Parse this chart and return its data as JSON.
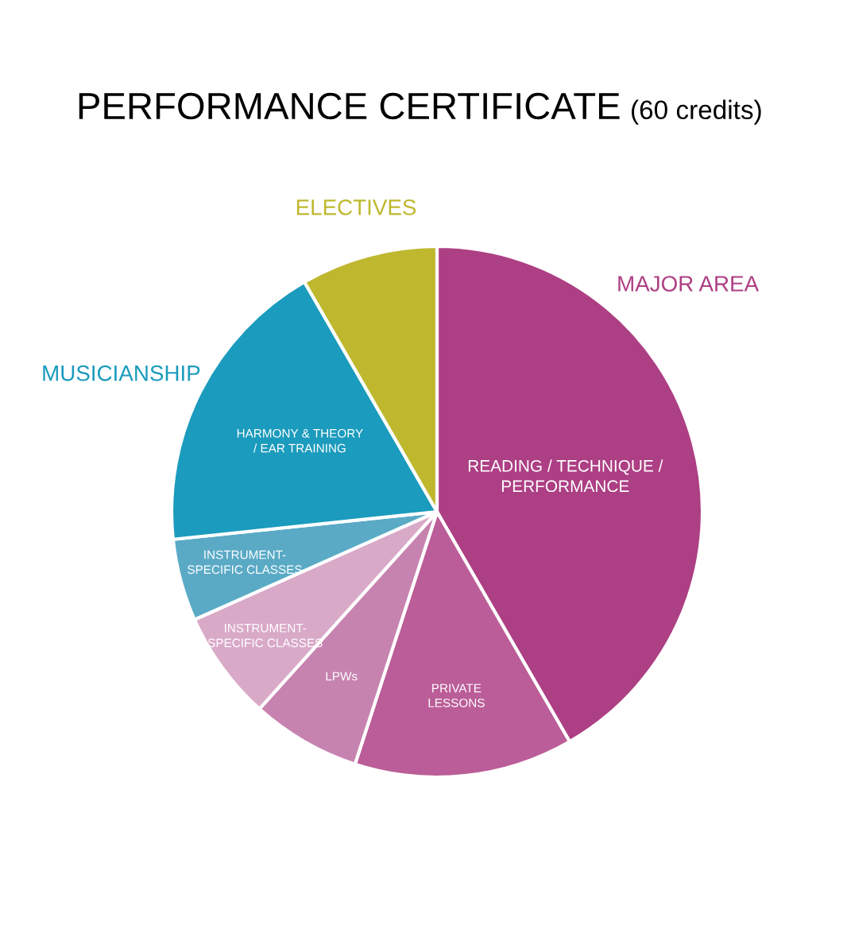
{
  "chart_data": {
    "type": "pie",
    "title": "PERFORMANCE CERTIFICATE",
    "subtitle": "(60 credits)",
    "categories": [
      "READING / TECHNIQUE /\nPERFORMANCE",
      "PRIVATE\nLESSONS",
      "LPWs",
      "INSTRUMENT-\nSPECIFIC CLASSES",
      "INSTRUMENT-\nSPECIFIC CLASSES",
      "HARMONY & THEORY\n/ EAR TRAINING",
      "ELECTIVES"
    ],
    "values": [
      41.67,
      13.33,
      6.67,
      6.67,
      5,
      18.33,
      8.33
    ],
    "colors": [
      "#ad3f84",
      "#bb5d98",
      "#c783b0",
      "#d9a9c8",
      "#5aaac6",
      "#1b9bbd",
      "#bfb82f"
    ],
    "annotations": [
      "MAJOR AREA",
      "MUSICIANSHIP"
    ],
    "legend": false
  }
}
